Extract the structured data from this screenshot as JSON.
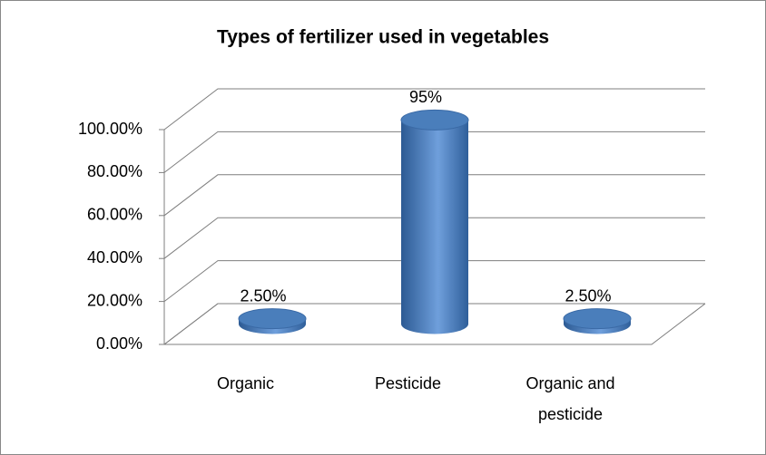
{
  "chart_data": {
    "type": "bar3d",
    "title": "Types of fertilizer used in vegetables",
    "categories": [
      "Organic",
      "Pesticide",
      "Organic and pesticide"
    ],
    "values": [
      2.5,
      95,
      2.5
    ],
    "value_labels": [
      "2.50%",
      "95%",
      "2.50%"
    ],
    "color": "#4a7ebb",
    "ylim": [
      0,
      100
    ],
    "yticks": [
      {
        "value": 0,
        "label": "0.00%"
      },
      {
        "value": 20,
        "label": "20.00%"
      },
      {
        "value": 40,
        "label": "40.00%"
      },
      {
        "value": 60,
        "label": "60.00%"
      },
      {
        "value": 80,
        "label": "80.00%"
      },
      {
        "value": 100,
        "label": "100.00%"
      }
    ],
    "grid": true
  }
}
